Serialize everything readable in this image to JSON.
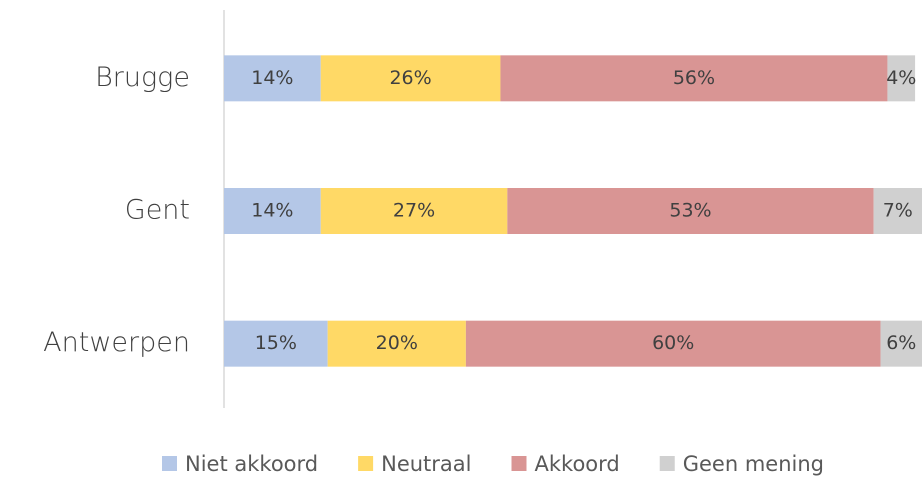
{
  "chart_data": {
    "type": "stacked_barh",
    "categories": [
      "Brugge",
      "Gent",
      "Antwerpen"
    ],
    "series": [
      {
        "name": "Niet akkoord",
        "color": "#b4c7e7",
        "values": [
          14,
          14,
          15
        ],
        "value_labels": [
          "14%",
          "14%",
          "15%"
        ]
      },
      {
        "name": "Neutraal",
        "color": "#ffd966",
        "values": [
          26,
          27,
          20
        ],
        "value_labels": [
          "26%",
          "27%",
          "20%"
        ]
      },
      {
        "name": "Akkoord",
        "color": "#d99594",
        "values": [
          56,
          53,
          60
        ],
        "value_labels": [
          "56%",
          "53%",
          "60%"
        ]
      },
      {
        "name": "Geen mening",
        "color": "#d0d0d0",
        "values": [
          4,
          7,
          6
        ],
        "value_labels": [
          "4%",
          "7%",
          "6%"
        ]
      }
    ],
    "legend": "bottom"
  }
}
